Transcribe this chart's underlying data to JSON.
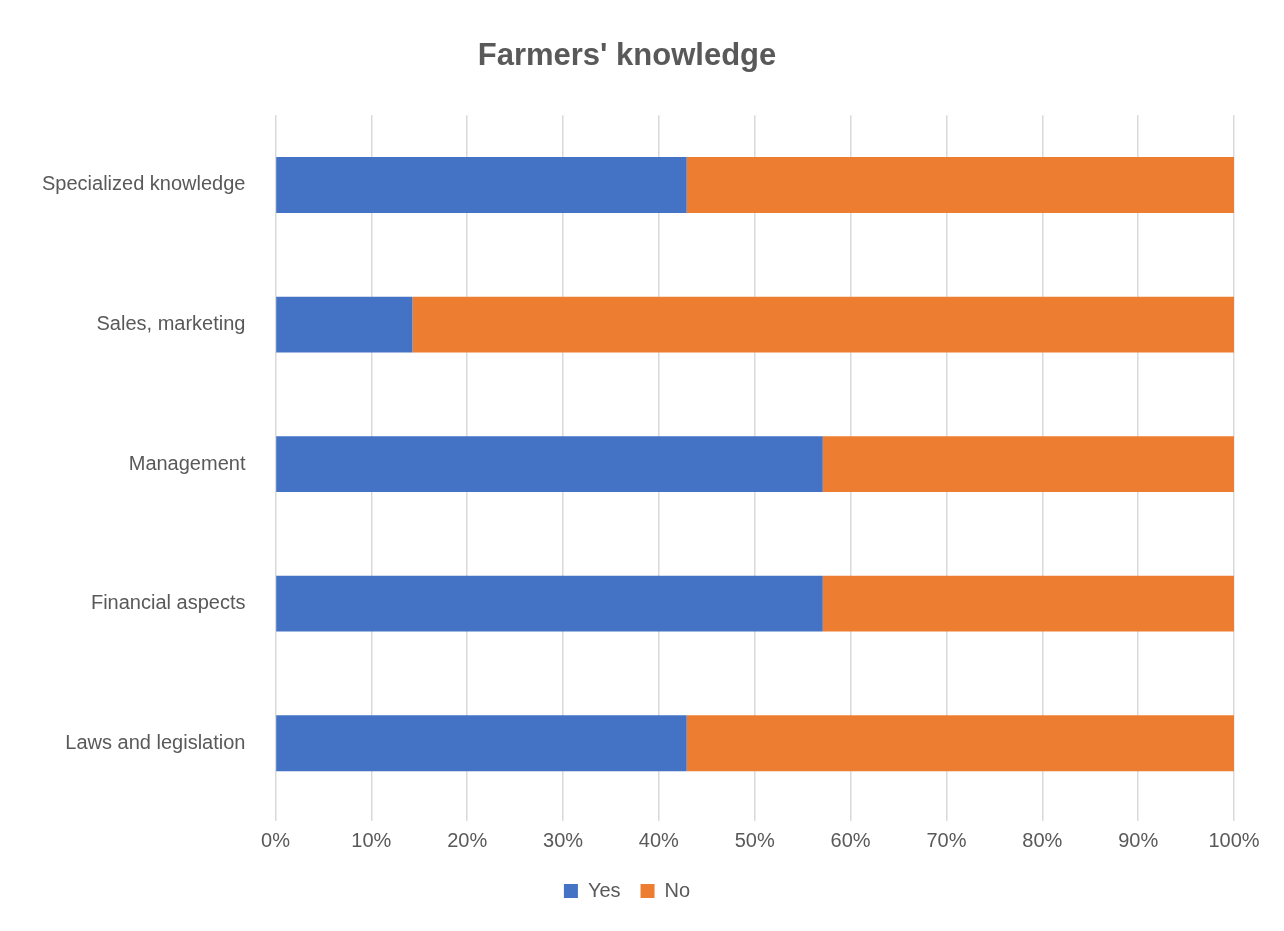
{
  "chart_data": {
    "type": "bar",
    "orientation": "horizontal",
    "stacked": true,
    "title": "Farmers' knowledge",
    "categories": [
      "Specialized knowledge",
      "Sales, marketing",
      "Management",
      "Financial aspects",
      "Laws and legislation"
    ],
    "series": [
      {
        "name": "Yes",
        "color": "#4472c4",
        "values": [
          42.9,
          14.3,
          57.1,
          57.1,
          42.9
        ]
      },
      {
        "name": "No",
        "color": "#ed7d31",
        "values": [
          57.1,
          85.7,
          42.9,
          42.9,
          57.1
        ]
      }
    ],
    "xlim": [
      0,
      100
    ],
    "xticks": [
      {
        "value": 0,
        "label": "0%"
      },
      {
        "value": 10,
        "label": "10%"
      },
      {
        "value": 20,
        "label": "20%"
      },
      {
        "value": 30,
        "label": "30%"
      },
      {
        "value": 40,
        "label": "40%"
      },
      {
        "value": 50,
        "label": "50%"
      },
      {
        "value": 60,
        "label": "60%"
      },
      {
        "value": 70,
        "label": "70%"
      },
      {
        "value": 80,
        "label": "80%"
      },
      {
        "value": 90,
        "label": "90%"
      },
      {
        "value": 100,
        "label": "100%"
      }
    ],
    "grid": "x",
    "legend": "bottom"
  }
}
